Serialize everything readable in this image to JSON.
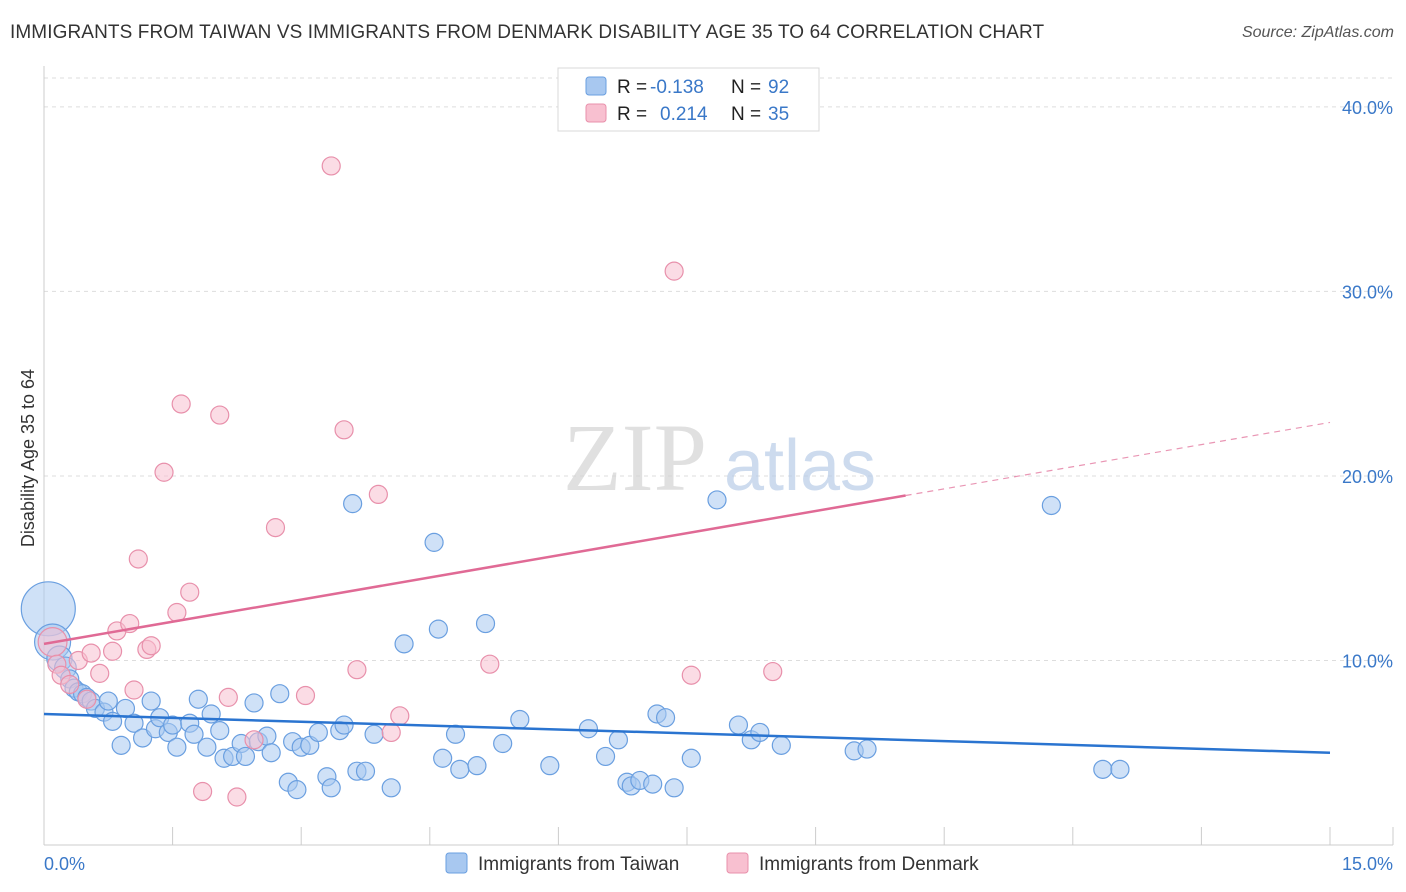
{
  "header": {
    "title": "IMMIGRANTS FROM TAIWAN VS IMMIGRANTS FROM DENMARK DISABILITY AGE 35 TO 64 CORRELATION CHART",
    "source": "Source: ZipAtlas.com"
  },
  "watermark": {
    "zip": "ZIP",
    "atlas": "atlas"
  },
  "legend": {
    "taiwan": {
      "r_label": "R =",
      "r_value": "-0.138",
      "n_label": "N =",
      "n_value": "92"
    },
    "denmark": {
      "r_label": "R =",
      "r_value": "0.214",
      "n_label": "N =",
      "n_value": "35"
    }
  },
  "bottom_legend": {
    "taiwan": "Immigrants from Taiwan",
    "denmark": "Immigrants from Denmark"
  },
  "colors": {
    "taiwan_fill": "#a8c8f0",
    "taiwan_stroke": "#6a9fe0",
    "taiwan_line": "#2a74d0",
    "denmark_fill": "#f8c0d0",
    "denmark_stroke": "#e890ab",
    "denmark_line": "#e06a95",
    "tick_label": "#3a78c8",
    "grid": "#dddddd"
  },
  "chart_data": {
    "type": "scatter",
    "title": "IMMIGRANTS FROM TAIWAN VS IMMIGRANTS FROM DENMARK DISABILITY AGE 35 TO 64 CORRELATION CHART",
    "xlabel": "",
    "ylabel": "Disability Age 35 to 64",
    "xlim": [
      0,
      15
    ],
    "ylim": [
      0,
      42
    ],
    "x_tick_labels": [
      "0.0%",
      "15.0%"
    ],
    "y_ticks": [
      10,
      20,
      30,
      40
    ],
    "y_tick_labels": [
      "10.0%",
      "20.0%",
      "30.0%",
      "40.0%"
    ],
    "grid": true,
    "series": [
      {
        "name": "Immigrants from Taiwan",
        "r": -0.138,
        "n": 92,
        "trend": {
          "x": [
            0,
            15
          ],
          "y": [
            7.1,
            5.0
          ],
          "dashed_from": null
        },
        "points": [
          [
            0.05,
            12.8,
            3
          ],
          [
            0.1,
            11.0,
            2
          ],
          [
            0.18,
            10.1,
            1.4
          ],
          [
            0.25,
            9.6,
            1.2
          ],
          [
            0.3,
            9.0,
            1
          ],
          [
            0.35,
            8.5,
            1
          ],
          [
            0.4,
            8.3,
            1
          ],
          [
            0.45,
            8.2,
            1
          ],
          [
            0.5,
            8.0,
            1
          ],
          [
            0.55,
            7.8,
            1
          ],
          [
            0.6,
            7.4,
            1
          ],
          [
            0.7,
            7.2,
            1
          ],
          [
            0.75,
            7.8,
            1
          ],
          [
            0.8,
            6.7,
            1
          ],
          [
            0.9,
            5.4,
            1
          ],
          [
            0.95,
            7.4,
            1
          ],
          [
            1.05,
            6.6,
            1
          ],
          [
            1.15,
            5.8,
            1
          ],
          [
            1.25,
            7.8,
            1
          ],
          [
            1.3,
            6.3,
            1
          ],
          [
            1.35,
            6.9,
            1
          ],
          [
            1.45,
            6.1,
            1
          ],
          [
            1.5,
            6.5,
            1
          ],
          [
            1.55,
            5.3,
            1
          ],
          [
            1.7,
            6.6,
            1
          ],
          [
            1.75,
            6.0,
            1
          ],
          [
            1.8,
            7.9,
            1
          ],
          [
            1.9,
            5.3,
            1
          ],
          [
            1.95,
            7.1,
            1
          ],
          [
            2.05,
            6.2,
            1
          ],
          [
            2.1,
            4.7,
            1
          ],
          [
            2.2,
            4.8,
            1
          ],
          [
            2.3,
            5.5,
            1
          ],
          [
            2.35,
            4.8,
            1
          ],
          [
            2.45,
            7.7,
            1
          ],
          [
            2.5,
            5.6,
            1
          ],
          [
            2.6,
            5.9,
            1
          ],
          [
            2.65,
            5.0,
            1
          ],
          [
            2.75,
            8.2,
            1
          ],
          [
            2.85,
            3.4,
            1
          ],
          [
            2.9,
            5.6,
            1
          ],
          [
            2.95,
            3.0,
            1
          ],
          [
            3.0,
            5.3,
            1
          ],
          [
            3.1,
            5.4,
            1
          ],
          [
            3.2,
            6.1,
            1
          ],
          [
            3.3,
            3.7,
            1
          ],
          [
            3.35,
            3.1,
            1
          ],
          [
            3.45,
            6.2,
            1
          ],
          [
            3.5,
            6.5,
            1
          ],
          [
            3.6,
            18.5,
            1
          ],
          [
            3.65,
            4.0,
            1
          ],
          [
            3.75,
            4.0,
            1
          ],
          [
            3.85,
            6.0,
            1
          ],
          [
            4.05,
            3.1,
            1
          ],
          [
            4.2,
            10.9,
            1
          ],
          [
            4.55,
            16.4,
            1
          ],
          [
            4.6,
            11.7,
            1
          ],
          [
            4.65,
            4.7,
            1
          ],
          [
            4.8,
            6.0,
            1
          ],
          [
            4.85,
            4.1,
            1
          ],
          [
            5.05,
            4.3,
            1
          ],
          [
            5.15,
            12.0,
            1
          ],
          [
            5.35,
            5.5,
            1
          ],
          [
            5.55,
            6.8,
            1
          ],
          [
            5.9,
            4.3,
            1
          ],
          [
            6.35,
            6.3,
            1
          ],
          [
            6.55,
            4.8,
            1
          ],
          [
            6.7,
            5.7,
            1
          ],
          [
            6.8,
            3.4,
            1
          ],
          [
            6.85,
            3.2,
            1
          ],
          [
            6.95,
            3.5,
            1
          ],
          [
            7.1,
            3.3,
            1
          ],
          [
            7.15,
            7.1,
            1
          ],
          [
            7.25,
            6.9,
            1
          ],
          [
            7.35,
            3.1,
            1
          ],
          [
            7.55,
            4.7,
            1
          ],
          [
            7.85,
            18.7,
            1
          ],
          [
            8.1,
            6.5,
            1
          ],
          [
            8.25,
            5.7,
            1
          ],
          [
            8.35,
            6.1,
            1
          ],
          [
            8.6,
            5.4,
            1
          ],
          [
            9.45,
            5.1,
            1
          ],
          [
            9.6,
            5.2,
            1
          ],
          [
            11.75,
            18.4,
            1
          ],
          [
            12.35,
            4.1,
            1
          ],
          [
            12.55,
            4.1,
            1
          ]
        ]
      },
      {
        "name": "Immigrants from Denmark",
        "r": 0.214,
        "n": 35,
        "trend": {
          "x": [
            0,
            15
          ],
          "y": [
            10.9,
            22.9
          ],
          "dashed_from": 10.05
        },
        "points": [
          [
            0.1,
            11.0,
            1.6
          ],
          [
            0.15,
            9.8,
            1
          ],
          [
            0.2,
            9.2,
            1
          ],
          [
            0.3,
            8.7,
            1
          ],
          [
            0.4,
            10.0,
            1
          ],
          [
            0.5,
            7.9,
            1
          ],
          [
            0.55,
            10.4,
            1
          ],
          [
            0.65,
            9.3,
            1
          ],
          [
            0.8,
            10.5,
            1
          ],
          [
            0.85,
            11.6,
            1
          ],
          [
            1.0,
            12.0,
            1
          ],
          [
            1.05,
            8.4,
            1
          ],
          [
            1.1,
            15.5,
            1
          ],
          [
            1.2,
            10.6,
            1
          ],
          [
            1.25,
            10.8,
            1
          ],
          [
            1.4,
            20.2,
            1
          ],
          [
            1.55,
            12.6,
            1
          ],
          [
            1.6,
            23.9,
            1
          ],
          [
            1.7,
            13.7,
            1
          ],
          [
            1.85,
            2.9,
            1
          ],
          [
            2.05,
            23.3,
            1
          ],
          [
            2.15,
            8.0,
            1
          ],
          [
            2.25,
            2.6,
            1
          ],
          [
            2.45,
            5.7,
            1
          ],
          [
            2.7,
            17.2,
            1
          ],
          [
            3.05,
            8.1,
            1
          ],
          [
            3.35,
            36.8,
            1
          ],
          [
            3.5,
            22.5,
            1
          ],
          [
            3.65,
            9.5,
            1
          ],
          [
            3.9,
            19.0,
            1
          ],
          [
            4.05,
            6.1,
            1
          ],
          [
            4.15,
            7.0,
            1
          ],
          [
            5.2,
            9.8,
            1
          ],
          [
            7.35,
            31.1,
            1
          ],
          [
            7.55,
            9.2,
            1
          ],
          [
            8.5,
            9.4,
            1
          ]
        ]
      }
    ]
  }
}
